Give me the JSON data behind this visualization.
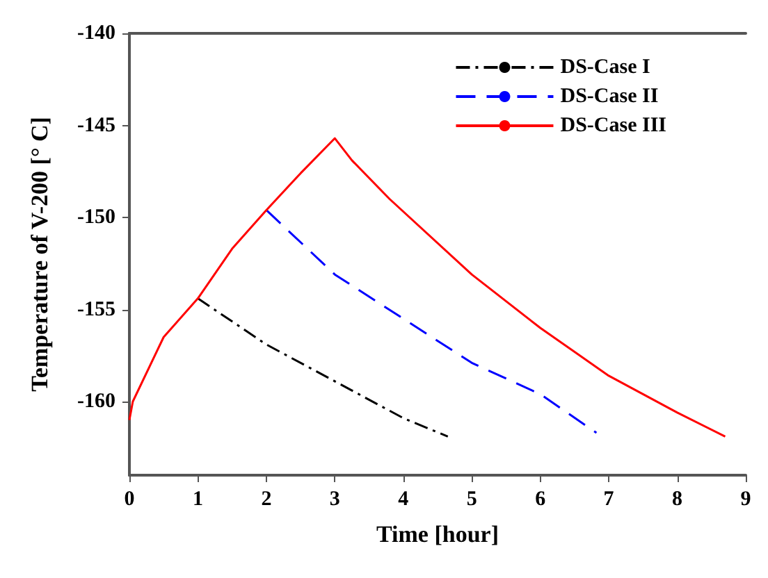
{
  "chart_data": {
    "type": "line",
    "xlabel": "Time [hour]",
    "ylabel": "Temperature of V-200 [° C]",
    "xlim": [
      0,
      9
    ],
    "xticks": [
      0,
      1,
      2,
      3,
      4,
      5,
      6,
      7,
      8,
      9
    ],
    "ylim": [
      -164,
      -140
    ],
    "yticks": [
      -140,
      -145,
      -150,
      -155,
      -160
    ],
    "grid": false,
    "legend": "top right",
    "marker": "none",
    "series": [
      {
        "name": "DS-Case I",
        "color": "#000000",
        "line_style": "dashdot",
        "x": [
          1,
          2,
          3,
          4,
          4.65
        ],
        "values": [
          -154.4,
          -156.9,
          -158.9,
          -160.9,
          -161.9
        ]
      },
      {
        "name": "DS-Case II",
        "color": "#0000ff",
        "line_style": "dashed",
        "x": [
          2,
          3,
          4,
          5,
          6,
          6.82
        ],
        "values": [
          -149.6,
          -153.1,
          -155.5,
          -157.9,
          -159.6,
          -161.7
        ]
      },
      {
        "name": "DS-Case III",
        "color": "#ff0000",
        "line_style": "solid",
        "x": [
          0,
          0.05,
          0.5,
          1,
          1.5,
          2,
          2.5,
          3,
          3.25,
          3.8,
          5,
          6,
          7,
          8,
          8.7
        ],
        "values": [
          -161,
          -160,
          -156.5,
          -154.4,
          -151.7,
          -149.6,
          -147.6,
          -145.7,
          -146.9,
          -149,
          -153.1,
          -156,
          -158.6,
          -160.6,
          -161.9
        ]
      }
    ]
  }
}
